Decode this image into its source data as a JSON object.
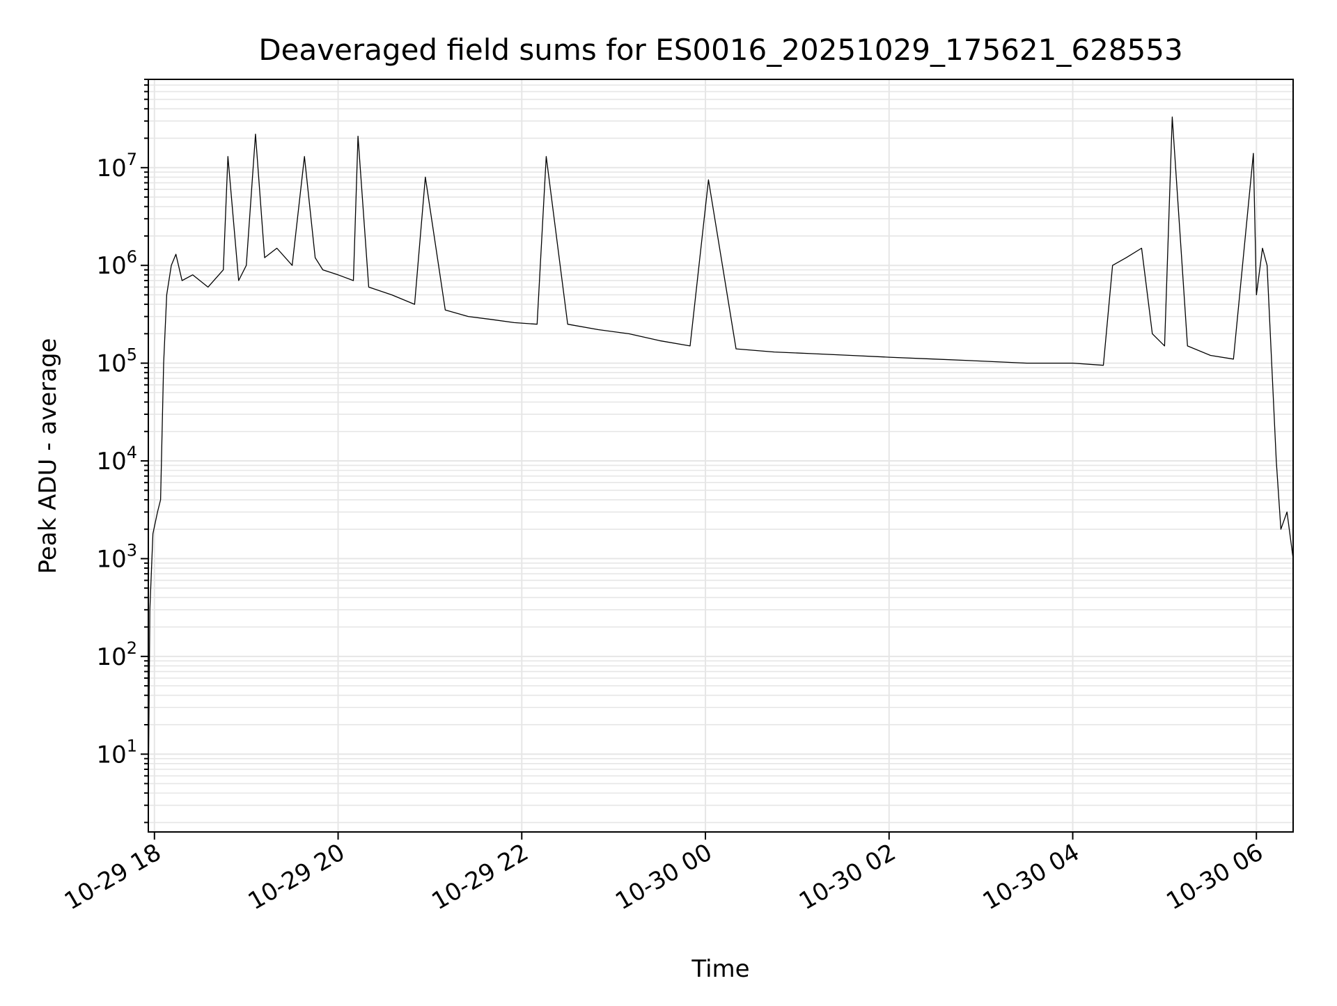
{
  "chart_data": {
    "type": "line",
    "title": "Deaveraged field sums for ES0016_20251029_175621_628553",
    "xlabel": "Time",
    "ylabel": "Peak ADU - average",
    "yscale": "log",
    "ylim": [
      1.6,
      80000000
    ],
    "xlim": [
      "2025-10-29 17:56",
      "2025-10-30 06:24"
    ],
    "grid": "both (major and minor)",
    "x_tick_labels": [
      "10-29 18",
      "10-29 20",
      "10-29 22",
      "10-30 00",
      "10-30 02",
      "10-30 04",
      "10-30 06"
    ],
    "y_tick_labels": [
      {
        "base": "10",
        "exp": "1",
        "value": 10
      },
      {
        "base": "10",
        "exp": "2",
        "value": 100
      },
      {
        "base": "10",
        "exp": "3",
        "value": 1000
      },
      {
        "base": "10",
        "exp": "4",
        "value": 10000
      },
      {
        "base": "10",
        "exp": "5",
        "value": 100000
      },
      {
        "base": "10",
        "exp": "6",
        "value": 1000000
      },
      {
        "base": "10",
        "exp": "7",
        "value": 10000000
      }
    ],
    "series": [
      {
        "color": "#000000",
        "points": [
          [
            "2025-10-29 17:56",
            4
          ],
          [
            "2025-10-29 17:57",
            300
          ],
          [
            "2025-10-29 17:59",
            1800
          ],
          [
            "2025-10-29 18:02",
            3000
          ],
          [
            "2025-10-29 18:04",
            4000
          ],
          [
            "2025-10-29 18:06",
            100000
          ],
          [
            "2025-10-29 18:08",
            500000
          ],
          [
            "2025-10-29 18:11",
            1000000
          ],
          [
            "2025-10-29 18:14",
            1300000
          ],
          [
            "2025-10-29 18:18",
            700000
          ],
          [
            "2025-10-29 18:25",
            800000
          ],
          [
            "2025-10-29 18:35",
            600000
          ],
          [
            "2025-10-29 18:45",
            900000
          ],
          [
            "2025-10-29 18:48",
            13000000
          ],
          [
            "2025-10-29 18:55",
            700000
          ],
          [
            "2025-10-29 19:00",
            1000000
          ],
          [
            "2025-10-29 19:06",
            22000000
          ],
          [
            "2025-10-29 19:12",
            1200000
          ],
          [
            "2025-10-29 19:20",
            1500000
          ],
          [
            "2025-10-29 19:30",
            1000000
          ],
          [
            "2025-10-29 19:38",
            13000000
          ],
          [
            "2025-10-29 19:45",
            1200000
          ],
          [
            "2025-10-29 19:50",
            900000
          ],
          [
            "2025-10-29 20:00",
            800000
          ],
          [
            "2025-10-29 20:10",
            700000
          ],
          [
            "2025-10-29 20:13",
            21000000
          ],
          [
            "2025-10-29 20:20",
            600000
          ],
          [
            "2025-10-29 20:35",
            500000
          ],
          [
            "2025-10-29 20:50",
            400000
          ],
          [
            "2025-10-29 20:57",
            8000000
          ],
          [
            "2025-10-29 21:10",
            350000
          ],
          [
            "2025-10-29 21:25",
            300000
          ],
          [
            "2025-10-29 21:40",
            280000
          ],
          [
            "2025-10-29 21:55",
            260000
          ],
          [
            "2025-10-29 22:10",
            250000
          ],
          [
            "2025-10-29 22:16",
            13000000
          ],
          [
            "2025-10-29 22:30",
            250000
          ],
          [
            "2025-10-29 22:50",
            220000
          ],
          [
            "2025-10-29 23:10",
            200000
          ],
          [
            "2025-10-29 23:30",
            170000
          ],
          [
            "2025-10-29 23:50",
            150000
          ],
          [
            "2025-10-30 00:02",
            7500000
          ],
          [
            "2025-10-30 00:20",
            140000
          ],
          [
            "2025-10-30 00:45",
            130000
          ],
          [
            "2025-10-30 01:10",
            125000
          ],
          [
            "2025-10-30 01:35",
            120000
          ],
          [
            "2025-10-30 02:00",
            115000
          ],
          [
            "2025-10-30 02:30",
            110000
          ],
          [
            "2025-10-30 03:00",
            105000
          ],
          [
            "2025-10-30 03:30",
            100000
          ],
          [
            "2025-10-30 04:00",
            100000
          ],
          [
            "2025-10-30 04:20",
            95000
          ],
          [
            "2025-10-30 04:26",
            1000000
          ],
          [
            "2025-10-30 04:35",
            1200000
          ],
          [
            "2025-10-30 04:45",
            1500000
          ],
          [
            "2025-10-30 04:52",
            200000
          ],
          [
            "2025-10-30 05:00",
            150000
          ],
          [
            "2025-10-30 05:05",
            33000000
          ],
          [
            "2025-10-30 05:15",
            150000
          ],
          [
            "2025-10-30 05:30",
            120000
          ],
          [
            "2025-10-30 05:45",
            110000
          ],
          [
            "2025-10-30 05:58",
            14000000
          ],
          [
            "2025-10-30 06:00",
            500000
          ],
          [
            "2025-10-30 06:04",
            1500000
          ],
          [
            "2025-10-30 06:07",
            1000000
          ],
          [
            "2025-10-30 06:10",
            100000
          ],
          [
            "2025-10-30 06:13",
            10000
          ],
          [
            "2025-10-30 06:16",
            2000
          ],
          [
            "2025-10-30 06:20",
            3000
          ],
          [
            "2025-10-30 06:24",
            1000
          ]
        ]
      }
    ]
  }
}
